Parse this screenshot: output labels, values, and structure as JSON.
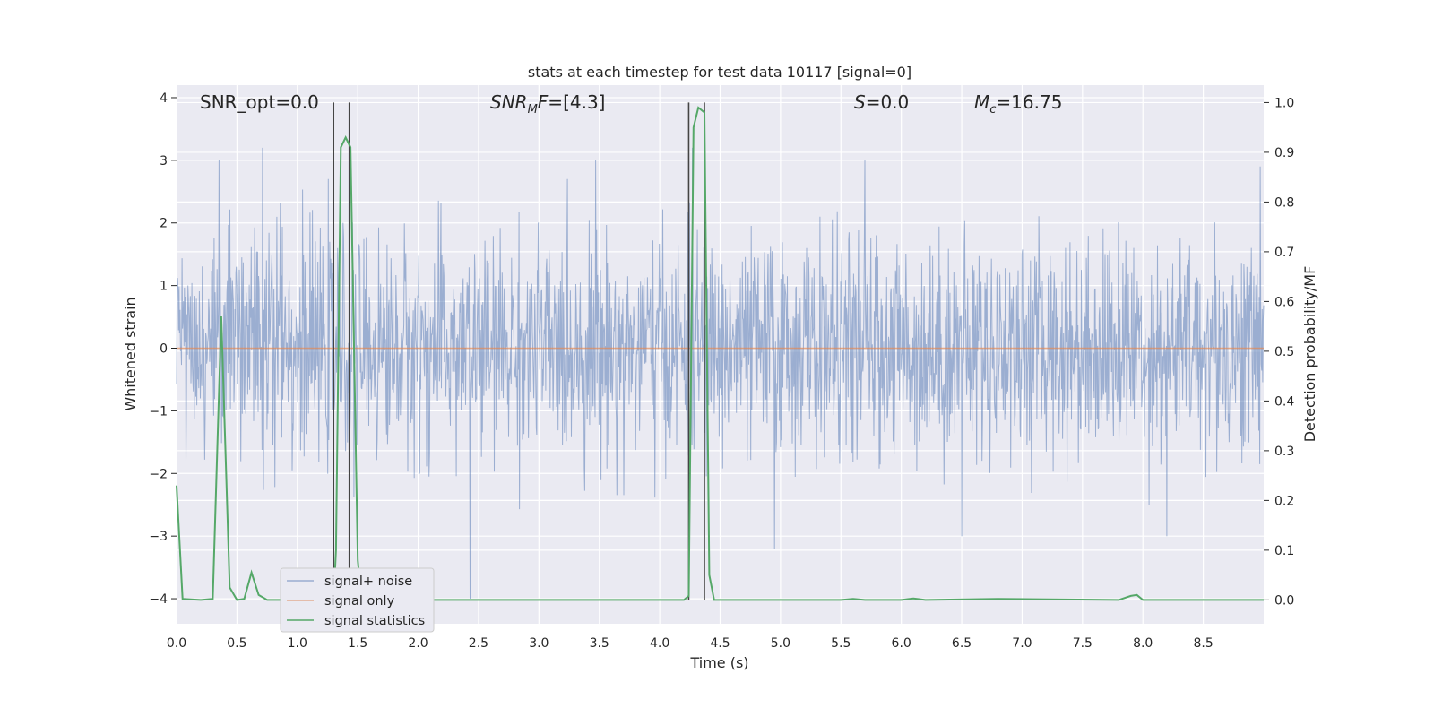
{
  "chart_data": {
    "type": "line",
    "title": "stats at each timestep for test data 10117 [signal=0]",
    "xlabel": "Time (s)",
    "ylabel_left": "Whitened strain",
    "ylabel_right": "Detection probability/MF",
    "xlim": [
      0.0,
      9.0
    ],
    "ylim_left": [
      -4.4,
      4.2
    ],
    "ylim_right": [
      -0.048,
      1.035
    ],
    "xticks": [
      "0.0",
      "0.5",
      "1.0",
      "1.5",
      "2.0",
      "2.5",
      "3.0",
      "3.5",
      "4.0",
      "4.5",
      "5.0",
      "5.5",
      "6.0",
      "6.5",
      "7.0",
      "7.5",
      "8.0",
      "8.5"
    ],
    "yticks_left": [
      "4",
      "3",
      "2",
      "1",
      "0",
      "−1",
      "−2",
      "−3",
      "−4"
    ],
    "yticks_right": [
      "1.0",
      "0.9",
      "0.8",
      "0.7",
      "0.6",
      "0.5",
      "0.4",
      "0.3",
      "0.2",
      "0.1",
      "0.0"
    ],
    "grid": true,
    "legend_placement": "lower-left",
    "annotations": {
      "snr_opt": "SNR_opt=0.0",
      "snr_mf": "[4.3]",
      "s": "=0.0",
      "mc": "=16.75"
    },
    "series": [
      {
        "name": "signal+ noise",
        "color": "#4c72b0",
        "axis": "left",
        "style": "dense-noise",
        "typical_range": [
          -2.0,
          2.0
        ],
        "peaks": [
          {
            "x": 0.35,
            "y": 3.0
          },
          {
            "x": 0.71,
            "y": 3.2
          },
          {
            "x": 2.43,
            "y": -4.0
          },
          {
            "x": 3.47,
            "y": 3.0
          },
          {
            "x": 4.27,
            "y": 3.2
          },
          {
            "x": 4.95,
            "y": -3.2
          },
          {
            "x": 5.7,
            "y": 3.0
          },
          {
            "x": 6.5,
            "y": -3.0
          },
          {
            "x": 8.2,
            "y": -3.0
          },
          {
            "x": 8.97,
            "y": 2.9
          }
        ]
      },
      {
        "name": "signal only",
        "color": "#dd8452",
        "axis": "left",
        "x": [
          0.0,
          9.0
        ],
        "y": [
          0.0,
          0.0
        ]
      },
      {
        "name": "signal statistics",
        "color": "#55a868",
        "axis": "right",
        "x": [
          0.0,
          0.05,
          0.2,
          0.3,
          0.37,
          0.44,
          0.5,
          0.56,
          0.62,
          0.68,
          0.75,
          1.3,
          1.32,
          1.36,
          1.4,
          1.44,
          1.5,
          1.53,
          1.6,
          4.2,
          4.24,
          4.28,
          4.32,
          4.37,
          4.41,
          4.45,
          5.5,
          5.6,
          5.7,
          6.0,
          6.1,
          6.2,
          6.8,
          7.8,
          7.9,
          7.95,
          8.0,
          9.0
        ],
        "y": [
          0.23,
          0.002,
          0.0,
          0.002,
          0.57,
          0.025,
          0.0,
          0.002,
          0.055,
          0.01,
          0.0,
          0.0,
          0.1,
          0.91,
          0.93,
          0.91,
          0.08,
          0.0,
          0.0,
          0.0,
          0.008,
          0.95,
          0.99,
          0.98,
          0.05,
          0.0,
          0.0,
          0.002,
          0.0,
          0.0,
          0.003,
          0.0,
          0.002,
          0.0,
          0.008,
          0.01,
          0.0,
          0.0
        ]
      }
    ],
    "vertical_markers": [
      {
        "x": 1.3,
        "y_top": 1.0
      },
      {
        "x": 1.43,
        "y_top": 1.0
      },
      {
        "x": 4.24,
        "y_top": 1.0
      },
      {
        "x": 4.37,
        "y_top": 1.0
      }
    ]
  }
}
